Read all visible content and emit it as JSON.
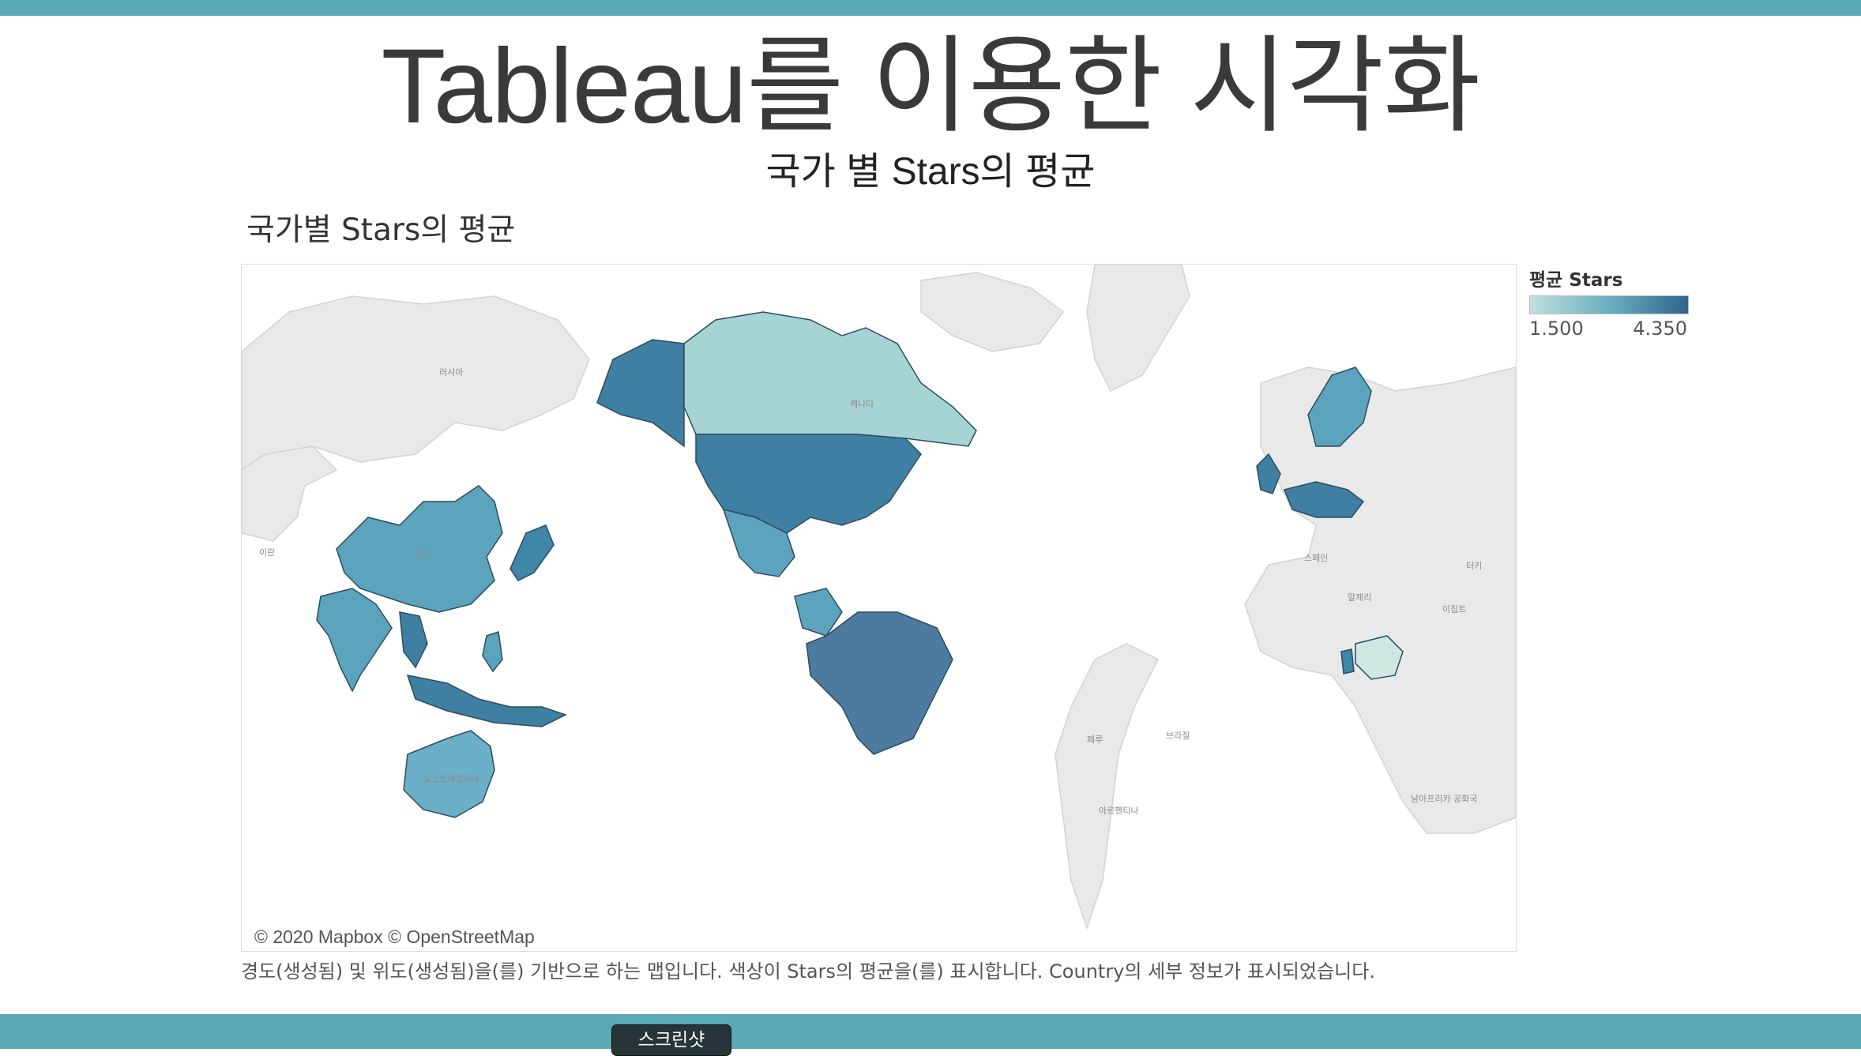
{
  "page": {
    "title": "Tableau를 이용한 시각화",
    "subtitle": "국가 별 Stars의 평균"
  },
  "viz": {
    "title": "국가별 Stars의 평균",
    "attribution": "© 2020 Mapbox © OpenStreetMap",
    "caption": "경도(생성됨) 및 위도(생성됨)을(를) 기반으로 하는 맵입니다. 색상이 Stars의 평균을(를) 표시합니다. Country의 세부 정보가 표시되었습니다.",
    "legend": {
      "title": "평균 Stars",
      "min_label": "1.500",
      "max_label": "4.350",
      "colors": [
        "#bfe0dc",
        "#6bafc0",
        "#2f648a"
      ]
    },
    "map_labels": {
      "russia": "러시아",
      "china": "중국",
      "iran": "이란",
      "australia": "오스트레일리아",
      "canada": "캐나다",
      "spain": "스페인",
      "turkey": "터키",
      "algeria": "알제리",
      "egypt": "이집트",
      "peru": "페루",
      "brazil": "브라질",
      "argentina": "아르헨티나",
      "south_africa": "남아프리카 공화국"
    }
  },
  "button": {
    "label": "스크린샷"
  },
  "colors": {
    "accent_bar": "#5aa9b5",
    "land": "#e9e9e9"
  }
}
